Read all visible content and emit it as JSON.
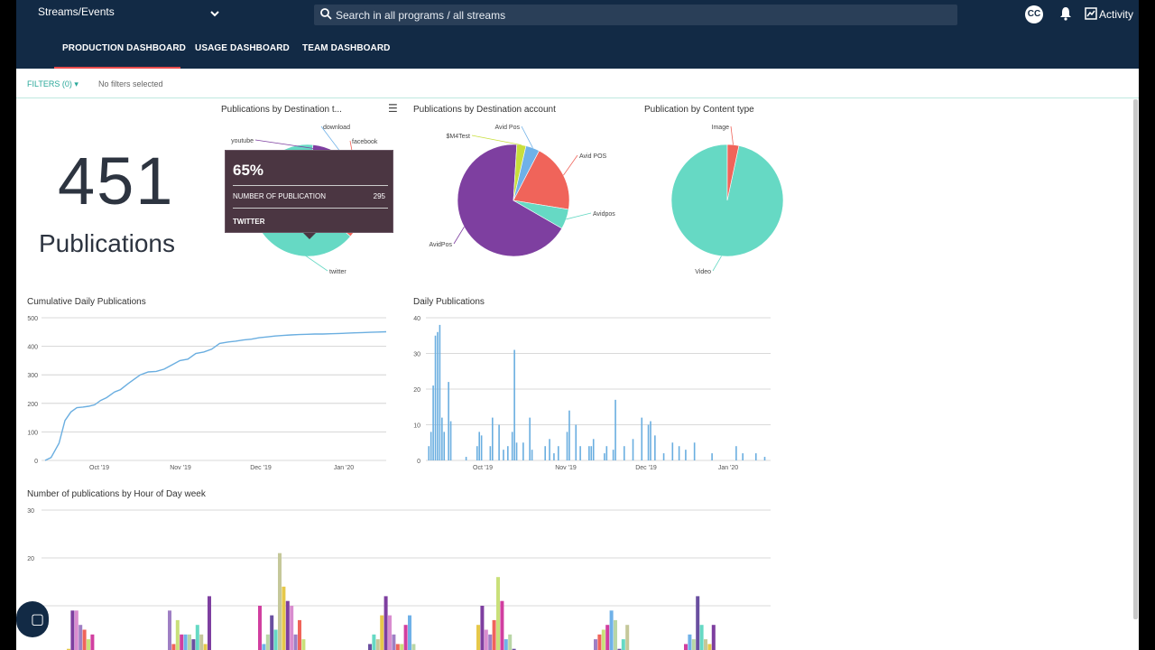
{
  "header": {
    "app_selector": "Streams/Events",
    "search_placeholder": "Search in all programs / all streams",
    "cc_label": "CC",
    "activity_label": "Activity"
  },
  "tabs": [
    {
      "label": "PRODUCTION DASHBOARD",
      "active": true
    },
    {
      "label": "USAGE DASHBOARD",
      "active": false
    },
    {
      "label": "TEAM DASHBOARD",
      "active": false
    }
  ],
  "filters": {
    "label": "FILTERS (0)",
    "status": "No filters selected"
  },
  "kpi": {
    "value": "451",
    "label": "Publications"
  },
  "colors": {
    "purple": "#7e3fa0",
    "teal": "#66d9c4",
    "coral": "#f0645a",
    "blue": "#6fb1e8",
    "lime": "#c8de3c",
    "line": "#6aaee0",
    "navy": "#122a45"
  },
  "tooltip": {
    "percent": "65%",
    "metric_label": "NUMBER OF PUBLICATION",
    "metric_value": "295",
    "category": "TWITTER"
  },
  "chart_data": [
    {
      "type": "pie",
      "title": "Publications by Destination t...",
      "slices": [
        {
          "label": "twitter",
          "value": 295
        },
        {
          "label": "youtube",
          "value": 60
        },
        {
          "label": "download",
          "value": 20
        },
        {
          "label": "facebook",
          "value": 76
        }
      ]
    },
    {
      "type": "pie",
      "title": "Publications by Destination account",
      "slices": [
        {
          "label": "AvidPos",
          "value": 305
        },
        {
          "label": "$M4Test",
          "value": 12
        },
        {
          "label": "Avid Pos",
          "value": 18
        },
        {
          "label": "Avid POS",
          "value": 90
        },
        {
          "label": "Avidpos",
          "value": 26
        }
      ]
    },
    {
      "type": "pie",
      "title": "Publication by Content type",
      "slices": [
        {
          "label": "Video",
          "value": 436
        },
        {
          "label": "Image",
          "value": 15
        }
      ]
    },
    {
      "type": "line",
      "title": "Cumulative Daily Publications",
      "xticks": [
        "Oct '19",
        "Nov '19",
        "Dec '19",
        "Jan '20"
      ],
      "ylim": [
        0,
        500
      ],
      "yticks": [
        0,
        100,
        200,
        300,
        400,
        500
      ],
      "x_days": [
        0,
        3,
        7,
        10,
        13,
        16,
        19,
        22,
        25,
        28,
        31,
        35,
        38,
        42,
        45,
        48,
        52,
        56,
        60,
        64,
        68,
        72,
        76,
        80,
        84,
        88,
        92,
        96,
        100,
        104,
        108,
        112,
        116,
        120,
        124,
        128,
        132,
        136,
        140,
        144,
        148,
        152,
        156,
        160,
        164,
        168,
        172
      ],
      "values": [
        0,
        10,
        60,
        140,
        170,
        185,
        187,
        190,
        195,
        210,
        220,
        240,
        248,
        270,
        285,
        300,
        310,
        312,
        320,
        335,
        350,
        355,
        375,
        380,
        390,
        410,
        415,
        418,
        422,
        425,
        430,
        433,
        436,
        438,
        440,
        441,
        442,
        443,
        443,
        444,
        445,
        446,
        447,
        448,
        449,
        450,
        451
      ]
    },
    {
      "type": "bar",
      "title": "Daily Publications",
      "xticks": [
        "Oct '19",
        "Nov '19",
        "Dec '19",
        "Jan '20"
      ],
      "ylim": [
        0,
        40
      ],
      "yticks": [
        0,
        10,
        20,
        30,
        40
      ],
      "days": [
        1,
        2,
        3,
        4,
        5,
        6,
        7,
        8,
        10,
        11,
        18,
        23,
        24,
        25,
        29,
        30,
        33,
        35,
        37,
        39,
        40,
        41,
        44,
        47,
        48,
        54,
        56,
        58,
        60,
        64,
        65,
        68,
        70,
        74,
        75,
        76,
        81,
        82,
        85,
        86,
        90,
        94,
        98,
        101,
        102,
        104,
        108,
        112,
        115,
        118,
        122,
        130,
        141,
        144,
        150,
        154
      ],
      "values": [
        4,
        8,
        21,
        35,
        36,
        38,
        12,
        8,
        22,
        11,
        1,
        4,
        8,
        7,
        4,
        12,
        10,
        3,
        4,
        8,
        31,
        5,
        5,
        12,
        3,
        4,
        6,
        2,
        4,
        8,
        14,
        10,
        4,
        4,
        4,
        6,
        2,
        4,
        3,
        17,
        4,
        6,
        12,
        10,
        11,
        7,
        2,
        5,
        4,
        3,
        5,
        2,
        4,
        2,
        2,
        1
      ]
    },
    {
      "type": "bar",
      "title": "Number of publications by Hour of Day week",
      "ylim": [
        0,
        30
      ],
      "yticks": [
        10,
        20,
        30
      ],
      "groups": [
        {
          "values": [
            1,
            9,
            9,
            6,
            5,
            3,
            4
          ]
        },
        {
          "values": [
            9,
            2,
            7,
            4,
            4,
            4,
            3,
            6,
            4,
            2,
            12
          ]
        },
        {
          "values": [
            10,
            2,
            4,
            8,
            5,
            21,
            14,
            11,
            10,
            4,
            7,
            3
          ]
        },
        {
          "values": [
            2,
            4,
            3,
            8,
            12,
            8,
            4,
            2,
            2,
            6,
            8,
            2
          ]
        },
        {
          "values": [
            6,
            10,
            5,
            4,
            7,
            16,
            11,
            3,
            4,
            1
          ]
        },
        {
          "values": [
            3,
            4,
            5,
            6,
            9,
            7,
            1,
            3,
            6
          ]
        },
        {
          "values": [
            2,
            4,
            3,
            12,
            6,
            3,
            2,
            6
          ]
        }
      ]
    }
  ]
}
